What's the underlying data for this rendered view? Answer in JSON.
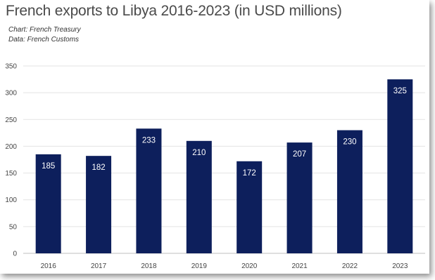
{
  "chart_data": {
    "type": "bar",
    "title": "French exports to Libya 2016-2023 (in USD millions)",
    "subtitle_source": "Chart: French Treasury",
    "subtitle_data": "Data: French Customs",
    "categories": [
      "2016",
      "2017",
      "2018",
      "2019",
      "2020",
      "2021",
      "2022",
      "2023"
    ],
    "values": [
      185,
      182,
      233,
      210,
      172,
      207,
      230,
      325
    ],
    "ylim": [
      0,
      350
    ],
    "yticks": [
      0,
      50,
      100,
      150,
      200,
      250,
      300,
      350
    ],
    "grid": true,
    "bar_color": "#0d1f5c",
    "data_labels": true
  }
}
